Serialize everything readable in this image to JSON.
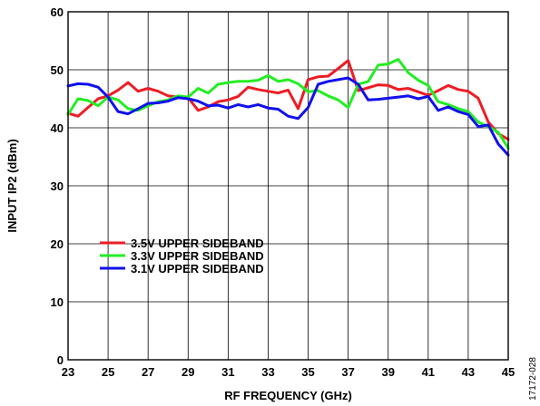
{
  "chart_data": {
    "type": "line",
    "xlabel": "RF FREQUENCY (GHz)",
    "ylabel": "INPUT IP2 (dBm)",
    "xlim": [
      23,
      45
    ],
    "ylim": [
      0,
      60
    ],
    "xticks": [
      23,
      25,
      27,
      29,
      31,
      33,
      35,
      37,
      39,
      41,
      43,
      45
    ],
    "yticks": [
      0,
      10,
      20,
      30,
      40,
      50,
      60
    ],
    "grid": true,
    "legend_position": "lower-left",
    "series": [
      {
        "name": "3.5V UPPER SIDEBAND",
        "color": "#ee1c24",
        "x": [
          23,
          23.5,
          24,
          24.5,
          25,
          25.5,
          26,
          26.5,
          27,
          27.5,
          28,
          28.5,
          29,
          29.5,
          30,
          30.5,
          31,
          31.5,
          32,
          32.5,
          33,
          33.5,
          34,
          34.5,
          35,
          35.5,
          36,
          36.5,
          37,
          37.5,
          38,
          38.5,
          39,
          39.5,
          40,
          40.5,
          41,
          41.5,
          42,
          42.5,
          43,
          43.5,
          44,
          44.5,
          45
        ],
        "y": [
          42.5,
          42,
          43.5,
          45,
          45.5,
          46.5,
          47.8,
          46.3,
          46.8,
          46.3,
          45.5,
          45.3,
          45.2,
          43,
          43.6,
          44.5,
          44.8,
          45.4,
          47,
          46.6,
          46.3,
          46,
          46.5,
          43.3,
          48.3,
          48.8,
          48.9,
          50.2,
          51.6,
          46.4,
          46.9,
          47.4,
          47.3,
          46.6,
          46.8,
          46.2,
          45.6,
          46.4,
          47.3,
          46.6,
          46.3,
          45.1,
          41,
          39,
          38
        ]
      },
      {
        "name": "3.3V UPPER SIDEBAND",
        "color": "#22ee22",
        "x": [
          23,
          23.5,
          24,
          24.5,
          25,
          25.5,
          26,
          26.5,
          27,
          27.5,
          28,
          28.5,
          29,
          29.5,
          30,
          30.5,
          31,
          31.5,
          32,
          32.5,
          33,
          33.5,
          34,
          34.5,
          35,
          35.5,
          36,
          36.5,
          37,
          37.5,
          38,
          38.5,
          39,
          39.5,
          40,
          40.5,
          41,
          41.5,
          42,
          42.5,
          43,
          43.5,
          44,
          44.5,
          45
        ],
        "y": [
          42.3,
          45,
          44.7,
          43.8,
          45.3,
          44.8,
          43.3,
          43,
          43.8,
          44.5,
          44.8,
          45.5,
          45.3,
          46.8,
          46,
          47.5,
          47.8,
          48,
          48,
          48.2,
          49,
          48,
          48.3,
          47.6,
          46.2,
          46.4,
          45.5,
          44.8,
          43.5,
          47.5,
          48,
          50.8,
          51,
          51.8,
          49.5,
          48.2,
          47.3,
          44.5,
          44,
          43.3,
          42.8,
          41,
          40.2,
          39.2,
          36.5
        ]
      },
      {
        "name": "3.1V UPPER SIDEBAND",
        "color": "#1010ee",
        "x": [
          23,
          23.5,
          24,
          24.5,
          25,
          25.5,
          26,
          26.5,
          27,
          27.5,
          28,
          28.5,
          29,
          29.5,
          30,
          30.5,
          31,
          31.5,
          32,
          32.5,
          33,
          33.5,
          34,
          34.5,
          35,
          35.5,
          36,
          36.5,
          37,
          37.5,
          38,
          38.5,
          39,
          39.5,
          40,
          40.5,
          41,
          41.5,
          42,
          42.5,
          43,
          43.5,
          44,
          44.5,
          45
        ],
        "y": [
          47.2,
          47.6,
          47.5,
          47,
          45.3,
          42.8,
          42.4,
          43.3,
          44.2,
          44.3,
          44.6,
          45.2,
          45,
          44.6,
          43.8,
          43.9,
          43.4,
          44,
          43.6,
          44,
          43.4,
          43.2,
          42,
          41.6,
          43.5,
          47.5,
          48,
          48.3,
          48.6,
          47.5,
          44.8,
          44.9,
          45.1,
          45.3,
          45.5,
          45,
          45.4,
          43,
          43.6,
          42.8,
          42.3,
          40.2,
          40.5,
          37.2,
          35.3
        ]
      }
    ]
  },
  "figure_id": "17172-028"
}
